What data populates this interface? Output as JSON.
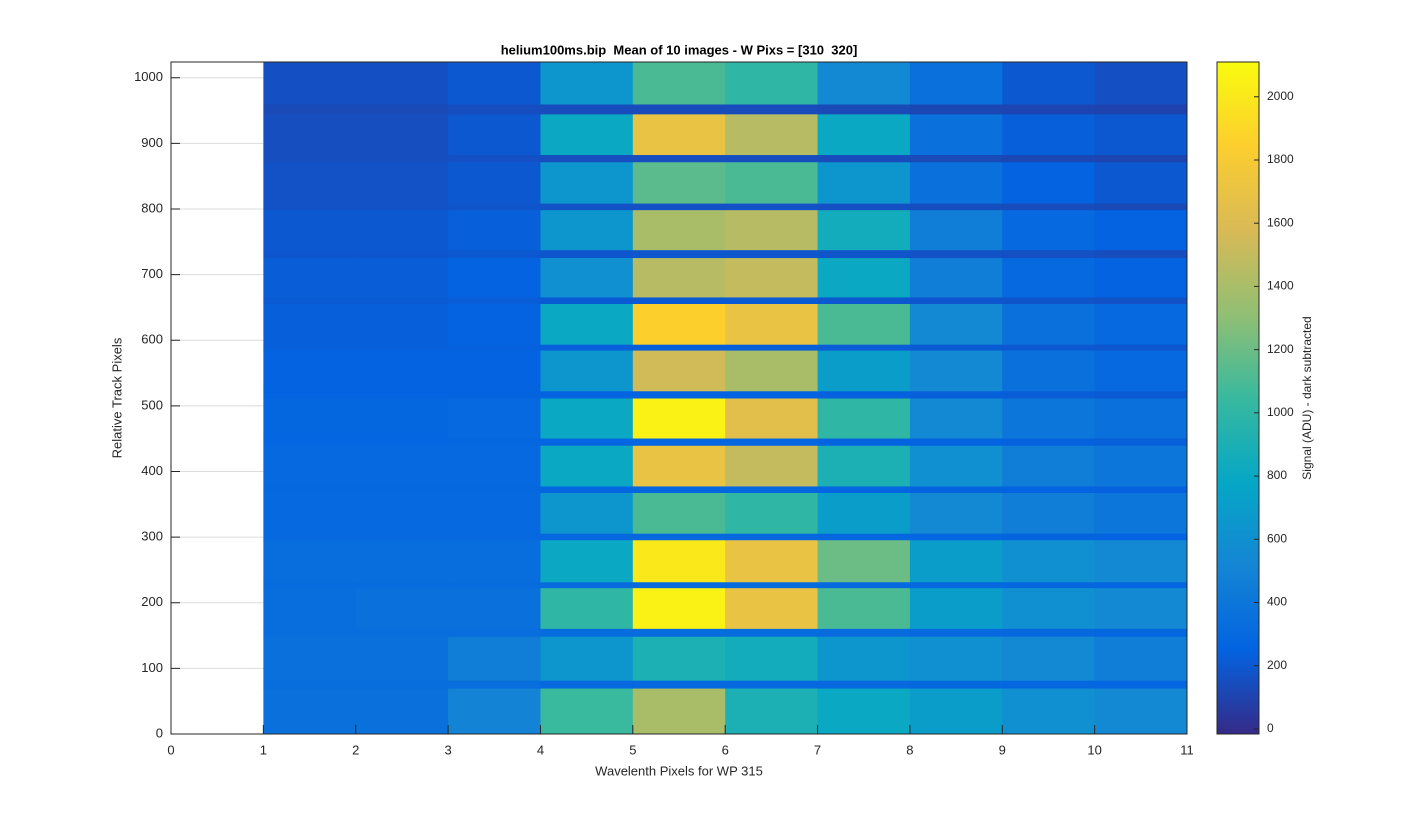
{
  "chart_data": {
    "type": "heatmap",
    "title": "helium100ms.bip  Mean of 10 images - W Pixs = [310  320]",
    "xlabel": "Wavelenth Pixels for WP 315",
    "ylabel": "Relative Track Pixels",
    "colorbar_label": "Signal (ADU) - dark subtracted",
    "colormap": "parula",
    "x_edges": [
      1,
      2,
      3,
      4,
      5,
      6,
      7,
      8,
      9,
      10,
      11
    ],
    "y_edges": [
      0,
      70,
      82,
      149,
      161,
      223,
      232,
      296,
      306,
      368,
      378,
      440,
      451,
      512,
      523,
      585,
      594,
      656,
      666,
      726,
      738,
      799,
      809,
      872,
      883,
      945,
      960,
      1024
    ],
    "values": [
      [
        350,
        350,
        500,
        1050,
        1400,
        900,
        800,
        700,
        600,
        550
      ],
      [
        330,
        330,
        330,
        300,
        300,
        300,
        300,
        290,
        280,
        270
      ],
      [
        350,
        350,
        450,
        650,
        900,
        850,
        650,
        600,
        550,
        450
      ],
      [
        330,
        330,
        330,
        320,
        320,
        320,
        310,
        300,
        290,
        280
      ],
      [
        330,
        350,
        350,
        1000,
        2050,
        1700,
        1100,
        700,
        600,
        550
      ],
      [
        320,
        320,
        320,
        310,
        310,
        310,
        300,
        290,
        280,
        270
      ],
      [
        330,
        330,
        330,
        800,
        2000,
        1700,
        1200,
        700,
        600,
        550
      ],
      [
        300,
        300,
        300,
        290,
        290,
        290,
        280,
        270,
        260,
        250
      ],
      [
        300,
        300,
        300,
        650,
        1100,
        1000,
        700,
        550,
        450,
        400
      ],
      [
        290,
        290,
        290,
        280,
        280,
        280,
        270,
        260,
        250,
        240
      ],
      [
        300,
        300,
        300,
        800,
        1700,
        1500,
        900,
        600,
        450,
        400
      ],
      [
        270,
        270,
        280,
        270,
        270,
        270,
        260,
        250,
        240,
        230
      ],
      [
        280,
        280,
        300,
        800,
        2050,
        1650,
        1000,
        550,
        400,
        350
      ],
      [
        250,
        250,
        260,
        250,
        250,
        250,
        240,
        230,
        220,
        210
      ],
      [
        250,
        250,
        250,
        650,
        1550,
        1400,
        700,
        550,
        350,
        300
      ],
      [
        230,
        230,
        240,
        230,
        230,
        230,
        220,
        210,
        200,
        190
      ],
      [
        230,
        230,
        250,
        800,
        1850,
        1700,
        1100,
        550,
        350,
        300
      ],
      [
        210,
        210,
        220,
        210,
        210,
        210,
        200,
        190,
        180,
        170
      ],
      [
        220,
        220,
        250,
        600,
        1450,
        1500,
        800,
        450,
        300,
        250
      ],
      [
        190,
        190,
        200,
        190,
        190,
        190,
        180,
        170,
        160,
        150
      ],
      [
        200,
        200,
        230,
        650,
        1400,
        1450,
        850,
        450,
        300,
        250
      ],
      [
        170,
        170,
        180,
        170,
        170,
        170,
        160,
        150,
        140,
        130
      ],
      [
        170,
        170,
        200,
        650,
        1150,
        1100,
        650,
        350,
        250,
        200
      ],
      [
        150,
        150,
        160,
        150,
        150,
        150,
        140,
        130,
        120,
        110
      ],
      [
        150,
        150,
        200,
        800,
        1700,
        1450,
        800,
        350,
        230,
        200
      ],
      [
        130,
        130,
        150,
        140,
        140,
        140,
        130,
        120,
        110,
        100
      ],
      [
        160,
        160,
        200,
        650,
        1100,
        1000,
        550,
        350,
        200,
        160
      ]
    ],
    "xlim": [
      0,
      11
    ],
    "xticks": [
      0,
      1,
      2,
      3,
      4,
      5,
      6,
      7,
      8,
      9,
      10,
      11
    ],
    "ylim": [
      0,
      1024
    ],
    "yticks": [
      0,
      100,
      200,
      300,
      400,
      500,
      600,
      700,
      800,
      900,
      1000
    ],
    "clim": [
      -16,
      2110
    ],
    "cticks": [
      0,
      200,
      400,
      600,
      800,
      1000,
      1200,
      1400,
      1600,
      1800,
      2000
    ],
    "grid": true
  }
}
